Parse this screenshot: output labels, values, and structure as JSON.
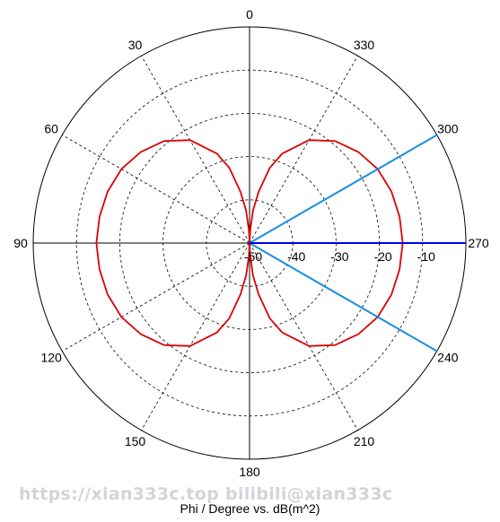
{
  "chart_data": {
    "type": "polar-line",
    "xlabel": "Phi / Degree vs. dB(m^2)",
    "angle_ticks": [
      "0",
      "30",
      "60",
      "90",
      "120",
      "150",
      "180",
      "210",
      "240",
      "270",
      "300",
      "330"
    ],
    "angle_direction": "counterclockwise",
    "zero_location": "top",
    "radial_ticks": [
      "-50",
      "-40",
      "-30",
      "-20",
      "-10"
    ],
    "rlim": [
      -50,
      0
    ],
    "grid": true,
    "series": [
      {
        "color": "#dd0000",
        "phi": [
          0,
          3,
          6,
          10,
          15,
          20,
          30,
          40,
          50,
          60,
          70,
          80,
          90,
          100,
          110,
          120,
          130,
          140,
          150,
          160,
          165,
          170,
          174,
          177,
          180,
          183,
          186,
          190,
          195,
          200,
          210,
          220,
          230,
          240,
          250,
          260,
          270,
          280,
          290,
          300,
          310,
          320,
          330,
          340,
          345,
          350,
          354,
          357,
          360
        ],
        "r": [
          -50,
          -47,
          -42.5,
          -38,
          -32,
          -28,
          -22.5,
          -19.2,
          -17.2,
          -15.8,
          -15.1,
          -14.8,
          -14.6,
          -14.8,
          -15.1,
          -15.8,
          -17.2,
          -19.2,
          -22.5,
          -28,
          -32,
          -38,
          -42.5,
          -47,
          -50,
          -47,
          -42.5,
          -38,
          -32,
          -28,
          -22.5,
          -19.2,
          -17.2,
          -15.8,
          -15.1,
          -14.8,
          -14.6,
          -14.8,
          -15.1,
          -15.8,
          -17.2,
          -19.2,
          -22.5,
          -28,
          -32,
          -38,
          -42.5,
          -47,
          -50
        ]
      },
      {
        "color": "#1a8fe0",
        "segments": [
          {
            "phi": 300,
            "r": [
              -50,
              0
            ]
          },
          {
            "phi": 240,
            "r": [
              -50,
              0
            ]
          }
        ]
      },
      {
        "color": "#0000dd",
        "segments": [
          {
            "phi": 270,
            "r": [
              -50,
              0
            ]
          }
        ]
      }
    ]
  },
  "watermark": "https://xian333c.top bilibili@xian333c"
}
